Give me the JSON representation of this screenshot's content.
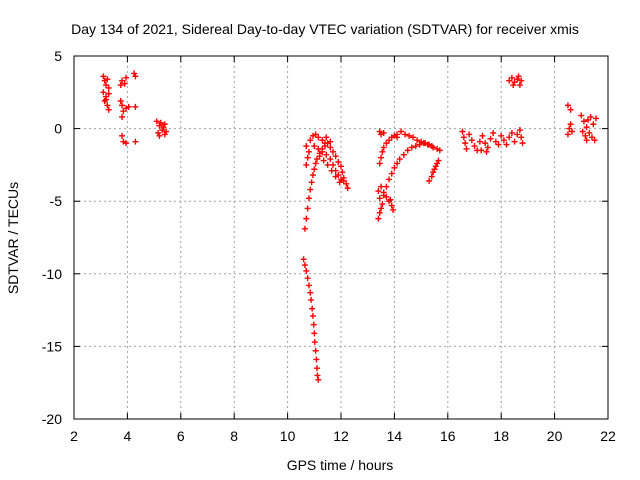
{
  "chart_data": {
    "type": "scatter",
    "title": "Day 134 of 2021, Sidereal Day-to-day VTEC variation (SDTVAR) for receiver xmis",
    "xlabel": "GPS time / hours",
    "ylabel": "SDTVAR / TECUs",
    "xlim": [
      2,
      22
    ],
    "ylim": [
      -20,
      5
    ],
    "xticks": [
      2,
      4,
      6,
      8,
      10,
      12,
      14,
      16,
      18,
      20,
      22
    ],
    "yticks": [
      5,
      0,
      -5,
      -10,
      -15,
      -20
    ],
    "grid": true,
    "marker": "+",
    "color": "#ff0000",
    "series": [
      {
        "name": "SDTVAR",
        "points": [
          [
            3.1,
            3.6
          ],
          [
            3.15,
            3.3
          ],
          [
            3.2,
            3.0
          ],
          [
            3.25,
            3.4
          ],
          [
            3.3,
            2.8
          ],
          [
            3.1,
            2.5
          ],
          [
            3.2,
            2.2
          ],
          [
            3.15,
            1.9
          ],
          [
            3.25,
            1.6
          ],
          [
            3.3,
            1.3
          ],
          [
            3.2,
            2.0
          ],
          [
            3.3,
            2.4
          ],
          [
            3.75,
            3.0
          ],
          [
            3.8,
            3.3
          ],
          [
            3.9,
            3.1
          ],
          [
            3.95,
            3.5
          ],
          [
            4.25,
            3.8
          ],
          [
            4.3,
            3.6
          ],
          [
            3.75,
            1.9
          ],
          [
            3.8,
            1.6
          ],
          [
            3.85,
            1.2
          ],
          [
            3.8,
            0.8
          ],
          [
            3.95,
            1.4
          ],
          [
            4.05,
            1.5
          ],
          [
            4.3,
            1.5
          ],
          [
            3.8,
            -0.5
          ],
          [
            3.85,
            -0.9
          ],
          [
            3.95,
            -1.0
          ],
          [
            4.3,
            -0.9
          ],
          [
            5.1,
            0.5
          ],
          [
            5.2,
            0.2
          ],
          [
            5.3,
            -0.1
          ],
          [
            5.4,
            -0.4
          ],
          [
            5.15,
            -0.3
          ],
          [
            5.25,
            0.4
          ],
          [
            5.35,
            0.1
          ],
          [
            5.45,
            -0.2
          ],
          [
            5.2,
            -0.5
          ],
          [
            5.4,
            0.3
          ],
          [
            10.65,
            -6.9
          ],
          [
            10.7,
            -6.2
          ],
          [
            10.75,
            -5.5
          ],
          [
            10.8,
            -4.8
          ],
          [
            10.85,
            -4.2
          ],
          [
            10.9,
            -3.7
          ],
          [
            10.95,
            -3.2
          ],
          [
            11.0,
            -2.8
          ],
          [
            11.05,
            -2.4
          ],
          [
            11.1,
            -2.1
          ],
          [
            11.2,
            -1.7
          ],
          [
            11.3,
            -1.4
          ],
          [
            11.4,
            -1.2
          ],
          [
            11.5,
            -1.0
          ],
          [
            11.6,
            -0.9
          ],
          [
            10.7,
            -2.5
          ],
          [
            10.75,
            -2.0
          ],
          [
            10.8,
            -1.6
          ],
          [
            10.7,
            -1.2
          ],
          [
            10.85,
            -0.8
          ],
          [
            10.95,
            -0.5
          ],
          [
            11.05,
            -0.4
          ],
          [
            11.15,
            -0.6
          ],
          [
            11.3,
            -0.8
          ],
          [
            11.4,
            -1.0
          ],
          [
            11.45,
            -0.6
          ],
          [
            11.0,
            -1.2
          ],
          [
            11.15,
            -1.4
          ],
          [
            11.3,
            -1.6
          ],
          [
            11.45,
            -1.8
          ],
          [
            11.6,
            -2.1
          ],
          [
            11.7,
            -2.5
          ],
          [
            11.8,
            -2.9
          ],
          [
            11.9,
            -3.2
          ],
          [
            12.0,
            -3.5
          ],
          [
            12.1,
            -3.6
          ],
          [
            12.2,
            -3.8
          ],
          [
            12.25,
            -4.1
          ],
          [
            11.2,
            -1.9
          ],
          [
            11.35,
            -2.2
          ],
          [
            11.5,
            -2.5
          ],
          [
            11.65,
            -2.9
          ],
          [
            11.8,
            -3.3
          ],
          [
            11.95,
            -3.7
          ],
          [
            11.6,
            -1.3
          ],
          [
            11.7,
            -1.6
          ],
          [
            11.8,
            -1.9
          ],
          [
            11.9,
            -2.3
          ],
          [
            12.0,
            -2.6
          ],
          [
            12.05,
            -3.0
          ],
          [
            12.1,
            -3.4
          ],
          [
            10.6,
            -9.0
          ],
          [
            10.65,
            -9.4
          ],
          [
            10.7,
            -9.8
          ],
          [
            10.75,
            -10.3
          ],
          [
            10.8,
            -10.8
          ],
          [
            10.85,
            -11.3
          ],
          [
            10.88,
            -11.8
          ],
          [
            10.92,
            -12.4
          ],
          [
            10.95,
            -12.9
          ],
          [
            10.98,
            -13.5
          ],
          [
            11.0,
            -14.1
          ],
          [
            11.02,
            -14.7
          ],
          [
            11.05,
            -15.3
          ],
          [
            11.08,
            -15.9
          ],
          [
            11.1,
            -16.5
          ],
          [
            11.12,
            -17.0
          ],
          [
            11.15,
            -17.3
          ],
          [
            13.4,
            -6.2
          ],
          [
            13.45,
            -5.8
          ],
          [
            13.5,
            -5.5
          ],
          [
            13.55,
            -5.2
          ],
          [
            13.45,
            -4.8
          ],
          [
            13.4,
            -4.3
          ],
          [
            13.5,
            -4.0
          ],
          [
            13.6,
            -4.4
          ],
          [
            13.7,
            -4.7
          ],
          [
            13.8,
            -5.0
          ],
          [
            13.9,
            -5.3
          ],
          [
            13.95,
            -5.6
          ],
          [
            13.85,
            -4.9
          ],
          [
            13.45,
            -2.4
          ],
          [
            13.5,
            -2.0
          ],
          [
            13.55,
            -1.6
          ],
          [
            13.6,
            -1.3
          ],
          [
            13.7,
            -1.0
          ],
          [
            13.8,
            -0.8
          ],
          [
            13.9,
            -0.6
          ],
          [
            14.0,
            -0.5
          ],
          [
            14.1,
            -0.6
          ],
          [
            13.5,
            -0.4
          ],
          [
            13.45,
            -0.2
          ],
          [
            13.6,
            -0.3
          ],
          [
            13.6,
            -4.6
          ],
          [
            13.7,
            -4.0
          ],
          [
            13.8,
            -3.5
          ],
          [
            13.9,
            -3.1
          ],
          [
            14.0,
            -2.7
          ],
          [
            14.1,
            -2.4
          ],
          [
            14.2,
            -2.1
          ],
          [
            14.35,
            -1.8
          ],
          [
            14.5,
            -1.5
          ],
          [
            14.65,
            -1.3
          ],
          [
            14.8,
            -1.2
          ],
          [
            14.95,
            -1.1
          ],
          [
            15.1,
            -1.0
          ],
          [
            15.25,
            -1.1
          ],
          [
            15.4,
            -1.2
          ],
          [
            14.1,
            -0.4
          ],
          [
            14.25,
            -0.2
          ],
          [
            14.4,
            -0.4
          ],
          [
            14.55,
            -0.5
          ],
          [
            14.7,
            -0.6
          ],
          [
            14.85,
            -0.8
          ],
          [
            15.0,
            -0.9
          ],
          [
            15.15,
            -1.0
          ],
          [
            15.3,
            -1.1
          ],
          [
            15.45,
            -1.3
          ],
          [
            15.6,
            -1.4
          ],
          [
            15.7,
            -1.5
          ],
          [
            15.3,
            -3.6
          ],
          [
            15.4,
            -3.3
          ],
          [
            15.45,
            -3.0
          ],
          [
            15.5,
            -2.8
          ],
          [
            15.55,
            -2.6
          ],
          [
            15.6,
            -2.4
          ],
          [
            15.65,
            -2.2
          ],
          [
            16.55,
            -0.2
          ],
          [
            16.6,
            -0.6
          ],
          [
            16.65,
            -1.0
          ],
          [
            16.7,
            -1.4
          ],
          [
            16.8,
            -0.4
          ],
          [
            16.9,
            -0.8
          ],
          [
            17.0,
            -1.2
          ],
          [
            17.1,
            -1.5
          ],
          [
            17.2,
            -0.9
          ],
          [
            17.3,
            -0.5
          ],
          [
            17.4,
            -1.0
          ],
          [
            17.5,
            -1.3
          ],
          [
            17.6,
            -0.7
          ],
          [
            17.7,
            -0.3
          ],
          [
            17.8,
            -0.9
          ],
          [
            17.9,
            -1.1
          ],
          [
            18.0,
            -0.5
          ],
          [
            18.1,
            -0.8
          ],
          [
            18.2,
            -1.1
          ],
          [
            18.3,
            -0.6
          ],
          [
            18.4,
            -0.3
          ],
          [
            18.5,
            -0.9
          ],
          [
            18.6,
            -0.4
          ],
          [
            18.7,
            -0.1
          ],
          [
            18.75,
            -0.6
          ],
          [
            18.8,
            -1.0
          ],
          [
            17.25,
            -1.5
          ],
          [
            17.45,
            -1.6
          ],
          [
            18.3,
            3.3
          ],
          [
            18.4,
            3.5
          ],
          [
            18.5,
            3.2
          ],
          [
            18.6,
            3.4
          ],
          [
            18.7,
            3.0
          ],
          [
            18.75,
            3.3
          ],
          [
            18.45,
            3.0
          ],
          [
            18.65,
            3.6
          ],
          [
            20.5,
            1.6
          ],
          [
            20.6,
            1.3
          ],
          [
            20.5,
            -0.4
          ],
          [
            20.55,
            0.0
          ],
          [
            20.6,
            0.3
          ],
          [
            20.65,
            -0.2
          ],
          [
            21.0,
            0.9
          ],
          [
            21.1,
            0.5
          ],
          [
            21.2,
            0.1
          ],
          [
            21.3,
            -0.3
          ],
          [
            21.4,
            -0.6
          ],
          [
            21.5,
            -0.8
          ],
          [
            21.15,
            -0.5
          ],
          [
            21.25,
            0.6
          ],
          [
            21.35,
            0.8
          ],
          [
            21.45,
            0.3
          ],
          [
            21.55,
            0.7
          ],
          [
            21.05,
            -0.2
          ],
          [
            21.2,
            -0.8
          ]
        ]
      }
    ]
  }
}
